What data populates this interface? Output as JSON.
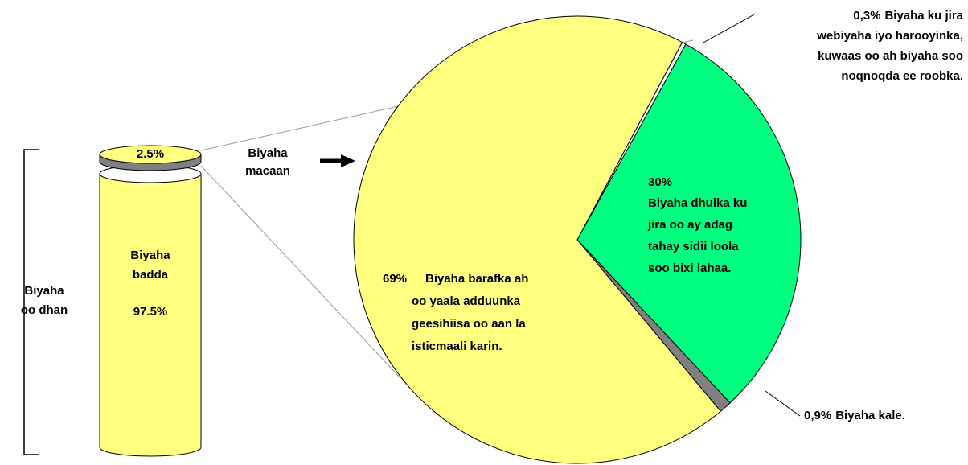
{
  "chart_data": [
    {
      "type": "cylinder",
      "values": [
        2.5,
        97.5
      ],
      "value_labels": [
        "2.5%",
        "97.5%"
      ],
      "categories": [
        null,
        [
          "Biyaha",
          "badda"
        ]
      ],
      "colors": [
        "#808080",
        "#ffff80"
      ],
      "total_label": [
        "Biyaha",
        "oo dhan"
      ]
    },
    {
      "type": "pie",
      "annotation": [
        "Biyaha",
        "macaan"
      ],
      "values": [
        0.3,
        30,
        0.9,
        69
      ],
      "value_labels": [
        "0,3%",
        "30%",
        "0,9%",
        "69%"
      ],
      "categories": [
        [
          "Biyaha ku jira",
          "webiyaha iyo harooyinka,",
          "kuwaas oo ah biyaha soo",
          "noqnoqda ee roobka."
        ],
        [
          "Biyaha dhulka ku",
          "jira oo ay adag",
          "tahay sidii loola",
          "soo bixi lahaa."
        ],
        [
          "Biyaha kale."
        ],
        [
          "Biyaha barafka ah",
          "oo yaala adduunka",
          "geesihiisa oo aan la",
          "isticmaali karin."
        ]
      ],
      "colors": [
        "#ffffff",
        "#00ff80",
        "#808080",
        "#ffff80"
      ]
    }
  ]
}
